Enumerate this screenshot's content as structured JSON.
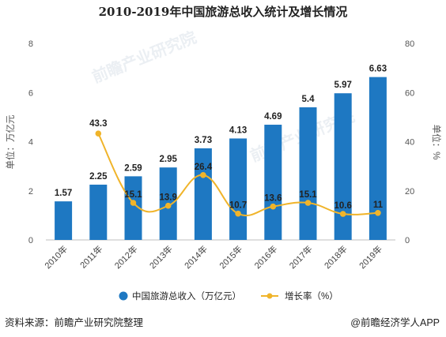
{
  "chart_data": {
    "type": "bar+line",
    "title": "2010-2019年中国旅游总收入统计及增长情况",
    "categories": [
      "2010年",
      "2011年",
      "2012年",
      "2013年",
      "2014年",
      "2015年",
      "2016年",
      "2017年",
      "2018年",
      "2019年"
    ],
    "series": [
      {
        "name": "中国旅游总收入（万亿元）",
        "type": "bar",
        "axis": "left",
        "values": [
          1.57,
          2.25,
          2.59,
          2.95,
          3.73,
          4.13,
          4.69,
          5.4,
          5.97,
          6.63
        ],
        "labels": [
          "1.57",
          "2.25",
          "2.59",
          "2.95",
          "3.73",
          "4.13",
          "4.69",
          "5.4",
          "5.97",
          "6.63"
        ],
        "color": "#1e78c2"
      },
      {
        "name": "增长率（%）",
        "type": "line",
        "axis": "right",
        "values": [
          null,
          43.3,
          15.1,
          13.9,
          26.4,
          10.7,
          13.6,
          15.1,
          10.6,
          11
        ],
        "labels": [
          "",
          "43.3",
          "15.1",
          "13.9",
          "26.4",
          "10.7",
          "13.6",
          "15.1",
          "10.6",
          "11"
        ],
        "color": "#f0b42a"
      }
    ],
    "ylabel_left": "单位：万亿元",
    "ylabel_right": "单位：%",
    "ylim_left": [
      0,
      8
    ],
    "yticks_left": [
      "0",
      "2",
      "4",
      "6",
      "8"
    ],
    "ylim_right": [
      0,
      80
    ],
    "yticks_right": [
      "0",
      "20",
      "40",
      "60",
      "80"
    ],
    "legend_position": "bottom",
    "grid": false
  },
  "footer": {
    "source": "资料来源：前瞻产业研究院整理",
    "credit": "@前瞻经济学人APP"
  },
  "watermark": "前瞻产业研究院"
}
